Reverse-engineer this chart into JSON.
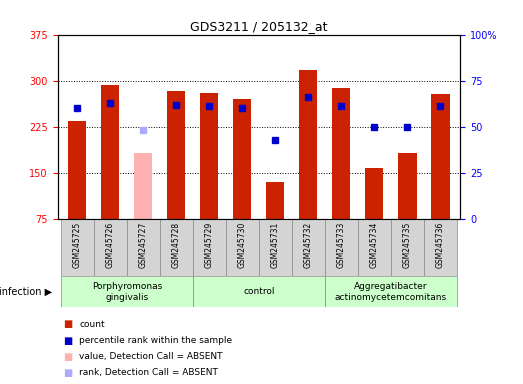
{
  "title": "GDS3211 / 205132_at",
  "samples": [
    "GSM245725",
    "GSM245726",
    "GSM245727",
    "GSM245728",
    "GSM245729",
    "GSM245730",
    "GSM245731",
    "GSM245732",
    "GSM245733",
    "GSM245734",
    "GSM245735",
    "GSM245736"
  ],
  "bar_values": [
    235,
    293,
    183,
    283,
    280,
    270,
    135,
    318,
    288,
    157,
    183,
    278
  ],
  "bar_absent": [
    false,
    false,
    true,
    false,
    false,
    false,
    false,
    false,
    false,
    false,
    false,
    false
  ],
  "blue_dot_values": [
    60,
    63,
    48,
    62,
    61,
    60,
    43,
    66,
    61,
    50,
    50,
    61
  ],
  "blue_dot_absent": [
    false,
    false,
    true,
    false,
    false,
    false,
    false,
    false,
    false,
    false,
    false,
    false
  ],
  "bar_color_normal": "#cc2200",
  "bar_color_absent": "#ffb0b0",
  "dot_color_normal": "#0000cc",
  "dot_color_absent": "#aaaaff",
  "ylim_left": [
    75,
    375
  ],
  "ylim_right": [
    0,
    100
  ],
  "yticks_left": [
    75,
    150,
    225,
    300,
    375
  ],
  "yticks_right": [
    0,
    25,
    50,
    75,
    100
  ],
  "group_labels": [
    "Porphyromonas\ngingivalis",
    "control",
    "Aggregatibacter\nactinomycetemcomitans"
  ],
  "group_ranges": [
    [
      0,
      3
    ],
    [
      4,
      7
    ],
    [
      8,
      11
    ]
  ],
  "group_color": "#ccffcc",
  "infection_label": "infection",
  "gray_color": "#d4d4d4",
  "legend_items": [
    {
      "label": "count",
      "color": "#cc2200"
    },
    {
      "label": "percentile rank within the sample",
      "color": "#0000cc"
    },
    {
      "label": "value, Detection Call = ABSENT",
      "color": "#ffb0b0"
    },
    {
      "label": "rank, Detection Call = ABSENT",
      "color": "#aaaaff"
    }
  ],
  "bar_width": 0.55
}
